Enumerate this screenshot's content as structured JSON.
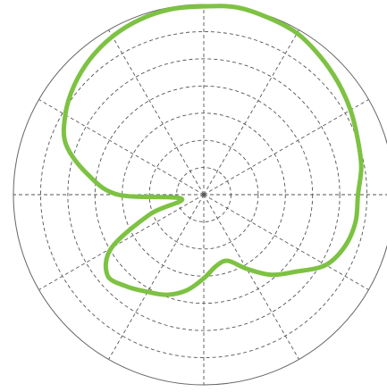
{
  "chart_data": {
    "type": "line",
    "coordinate_system": "polar",
    "title": "",
    "grid": true,
    "radial_gridlines": 6,
    "angular_gridlines_deg": 30,
    "rlim": [
      0,
      1
    ],
    "series": [
      {
        "color": "#7dc242",
        "points": [
          {
            "theta_deg": 0,
            "r": 0.81
          },
          {
            "theta_deg": 10,
            "r": 0.84
          },
          {
            "theta_deg": 20,
            "r": 0.86
          },
          {
            "theta_deg": 30,
            "r": 0.89
          },
          {
            "theta_deg": 40,
            "r": 0.92
          },
          {
            "theta_deg": 50,
            "r": 0.95
          },
          {
            "theta_deg": 60,
            "r": 0.98
          },
          {
            "theta_deg": 70,
            "r": 0.99
          },
          {
            "theta_deg": 80,
            "r": 1.0
          },
          {
            "theta_deg": 90,
            "r": 0.99
          },
          {
            "theta_deg": 100,
            "r": 0.99
          },
          {
            "theta_deg": 110,
            "r": 0.98
          },
          {
            "theta_deg": 120,
            "r": 0.96
          },
          {
            "theta_deg": 130,
            "r": 0.93
          },
          {
            "theta_deg": 140,
            "r": 0.89
          },
          {
            "theta_deg": 150,
            "r": 0.84
          },
          {
            "theta_deg": 160,
            "r": 0.77
          },
          {
            "theta_deg": 170,
            "r": 0.62
          },
          {
            "theta_deg": 180,
            "r": 0.45
          },
          {
            "theta_deg": 190,
            "r": 0.12
          },
          {
            "theta_deg": 200,
            "r": 0.3
          },
          {
            "theta_deg": 210,
            "r": 0.56
          },
          {
            "theta_deg": 220,
            "r": 0.66
          },
          {
            "theta_deg": 230,
            "r": 0.63
          },
          {
            "theta_deg": 240,
            "r": 0.59
          },
          {
            "theta_deg": 250,
            "r": 0.56
          },
          {
            "theta_deg": 260,
            "r": 0.51
          },
          {
            "theta_deg": 270,
            "r": 0.44
          },
          {
            "theta_deg": 280,
            "r": 0.38
          },
          {
            "theta_deg": 290,
            "r": 0.37
          },
          {
            "theta_deg": 300,
            "r": 0.45
          },
          {
            "theta_deg": 310,
            "r": 0.55
          },
          {
            "theta_deg": 320,
            "r": 0.63
          },
          {
            "theta_deg": 330,
            "r": 0.74
          },
          {
            "theta_deg": 340,
            "r": 0.79
          },
          {
            "theta_deg": 350,
            "r": 0.81
          }
        ]
      }
    ]
  }
}
